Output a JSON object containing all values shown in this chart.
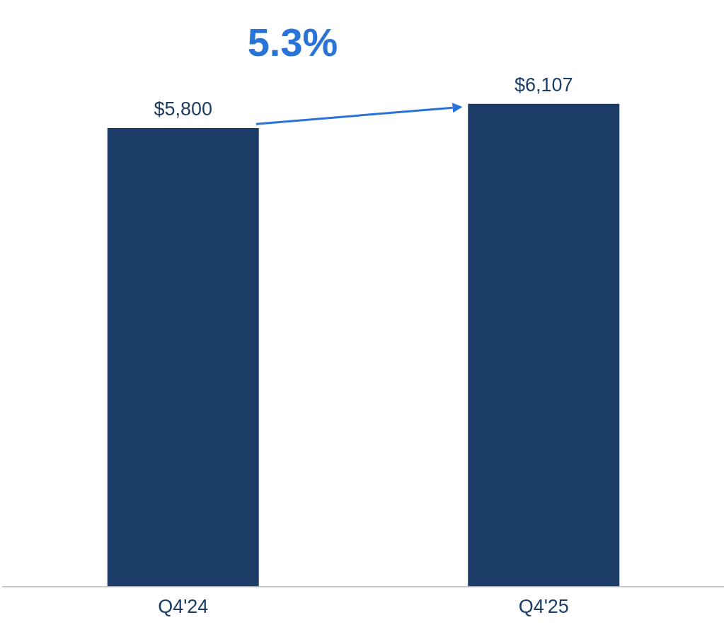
{
  "chart_data": {
    "type": "bar",
    "categories": [
      "Q4'24",
      "Q4'25"
    ],
    "values": [
      5800,
      6107
    ],
    "color": "#1b3c66",
    "tick_labels": "x",
    "grid": false,
    "legend": false,
    "value_labels": [
      "$5,800",
      "$6,107"
    ],
    "annotations": [
      "5.3%"
    ]
  }
}
